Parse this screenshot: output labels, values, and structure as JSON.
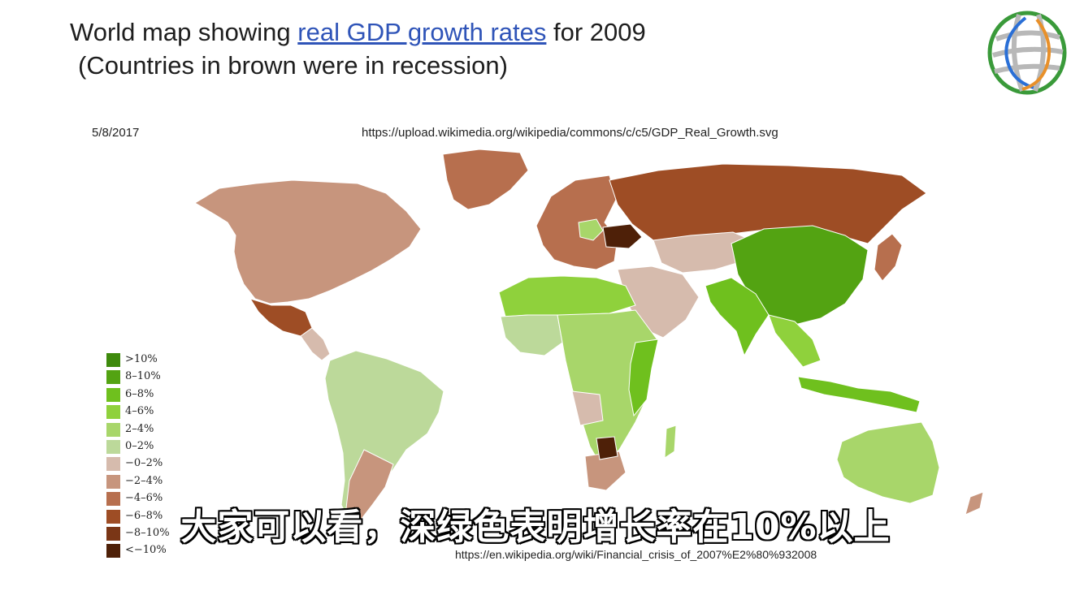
{
  "header": {
    "title_prefix": "World map showing ",
    "title_link": "real GDP growth rates",
    "title_suffix": " for 2009",
    "subtitle": "(Countries in brown were in recession)"
  },
  "date": "5/8/2017",
  "source_url": "https://upload.wikimedia.org/wikipedia/commons/c/c5/GDP_Real_Growth.svg",
  "bottom_url": "https://en.wikipedia.org/wiki/Financial_crisis_of_2007%E2%80%932008",
  "caption": "大家可以看，深绿色表明增长率在10%以上",
  "logo": {
    "icon": "globe-logo-icon",
    "colors": [
      "#3a9a3a",
      "#2a6fd6",
      "#e8902a",
      "#b8b8b8"
    ]
  },
  "legend": [
    {
      "label": ">10%",
      "color": "#3e8a0c"
    },
    {
      "label": "8–10%",
      "color": "#53a312"
    },
    {
      "label": "6–8%",
      "color": "#6fc01e"
    },
    {
      "label": "4–6%",
      "color": "#8fd13c"
    },
    {
      "label": "2–4%",
      "color": "#a8d66a"
    },
    {
      "label": "0–2%",
      "color": "#bcd99a"
    },
    {
      "label": "−0–2%",
      "color": "#d6bbad"
    },
    {
      "label": "−2–4%",
      "color": "#c7957d"
    },
    {
      "label": "−4–6%",
      "color": "#b76f4e"
    },
    {
      "label": "−6–8%",
      "color": "#9e4d25"
    },
    {
      "label": "−8–10%",
      "color": "#7a3616"
    },
    {
      "label": "<−10%",
      "color": "#4e2008"
    }
  ],
  "map_colors": {
    "north_america": "#c7957d",
    "mexico": "#9e4d25",
    "greenland": "#b76f4e",
    "central_america": "#d6bbad",
    "south_america": "#bcd99a",
    "argentina": "#c7957d",
    "europe": "#b76f4e",
    "poland": "#a8d66a",
    "ukraine": "#4e2008",
    "russia": "#9e4d25",
    "central_asia": "#d6bbad",
    "china": "#53a312",
    "india": "#6fc01e",
    "southeast_asia": "#8fd13c",
    "japan": "#b76f4e",
    "middle_east": "#d6bbad",
    "north_africa": "#8fd13c",
    "africa": "#a8d66a",
    "west_africa": "#bcd99a",
    "east_africa": "#6fc01e",
    "angola": "#d6bbad",
    "south_africa": "#c7957d",
    "botswana": "#4e2008",
    "madagascar": "#a8d66a",
    "indonesia": "#6fc01e",
    "australia": "#a8d66a",
    "new_zealand": "#c7957d",
    "ocean": "#ffffff"
  }
}
